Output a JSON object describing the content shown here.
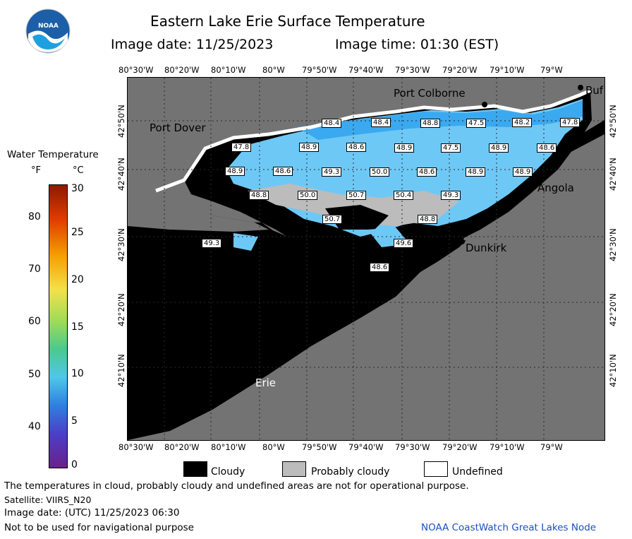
{
  "header": {
    "title": "Eastern Lake Erie Surface Temperature",
    "image_date": "Image date: 11/25/2023",
    "image_time": "Image time: 01:30 (EST)"
  },
  "logo": {
    "text": "NOAA"
  },
  "axes": {
    "lon_ticks": [
      "80°30'W",
      "80°20'W",
      "80°10'W",
      "80°W",
      "79°50'W",
      "79°40'W",
      "79°30'W",
      "79°20'W",
      "79°10'W",
      "79°W"
    ],
    "lat_ticks": [
      "42°50'N",
      "42°40'N",
      "42°30'N",
      "42°20'N",
      "42°10'N"
    ]
  },
  "colorbar": {
    "title": "Water Temperature",
    "unit_f": "°F",
    "unit_c": "°C",
    "f_ticks": [
      "80",
      "70",
      "60",
      "50",
      "40"
    ],
    "c_ticks": [
      "30",
      "25",
      "20",
      "15",
      "10",
      "5",
      "0"
    ]
  },
  "cities": {
    "port_colborne": "Port Colborne",
    "port_dover": "Port Dover",
    "angola": "Angola",
    "dunkirk": "Dunkirk",
    "erie": "Erie",
    "buffalo": "Buf"
  },
  "temperatures": [
    "48.4",
    "48.4",
    "48.8",
    "47.5",
    "48.2",
    "47.8",
    "47.8",
    "48.9",
    "48.6",
    "48.9",
    "47.5",
    "48.9",
    "48.6",
    "48.9",
    "48.6",
    "49.3",
    "50.0",
    "48.6",
    "48.9",
    "48.9",
    "48.8",
    "50.0",
    "50.7",
    "50.4",
    "49.3",
    "50.7",
    "48.8",
    "49.6",
    "49.3",
    "48.6"
  ],
  "legend": {
    "cloudy": "Cloudy",
    "probably_cloudy": "Probably cloudy",
    "undefined": "Undefined"
  },
  "footer": {
    "disclaimer": "The temperatures in cloud, probably cloudy and undefined areas are not for operational purpose.",
    "satellite": "Satellite: VIIRS_N20",
    "utc_date": "Image date: (UTC) 11/25/2023  06:30",
    "nav": "Not to be used for navigational purpose",
    "credit": "NOAA CoastWatch Great Lakes Node"
  },
  "colors": {
    "land": "#737373",
    "cloud": "#000000",
    "probably_cloudy": "#bcbcbc",
    "water_light": "#6ec8f5",
    "water_mid": "#3aa9f0",
    "undefined": "#ffffff"
  }
}
